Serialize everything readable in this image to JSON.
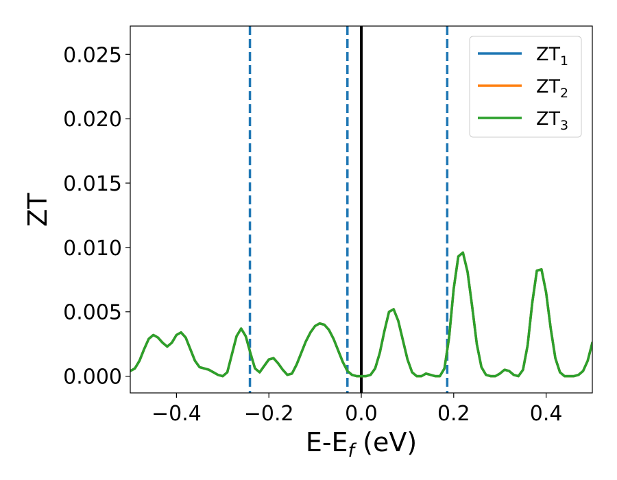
{
  "chart_data": {
    "type": "line",
    "xlabel_main": "E-E",
    "xlabel_sub": "f",
    "xlabel_unit": " (eV)",
    "ylabel": "ZT",
    "xlim": [
      -0.5,
      0.5
    ],
    "ylim": [
      -0.0013,
      0.0272
    ],
    "xticks": [
      -0.4,
      -0.2,
      0.0,
      0.2,
      0.4
    ],
    "xtick_labels": [
      "−0.4",
      "−0.2",
      "0.0",
      "0.2",
      "0.4"
    ],
    "yticks": [
      0.0,
      0.005,
      0.01,
      0.015,
      0.02,
      0.025
    ],
    "ytick_labels": [
      "0.000",
      "0.005",
      "0.010",
      "0.015",
      "0.020",
      "0.025"
    ],
    "grid": false,
    "legend_position": "top-right",
    "vlines": [
      {
        "x": -0.241,
        "style": "dashed",
        "color": "#1f77b4"
      },
      {
        "x": -0.03,
        "style": "dashed",
        "color": "#1f77b4"
      },
      {
        "x": 0.0,
        "style": "solid",
        "color": "#000000"
      },
      {
        "x": 0.186,
        "style": "dashed",
        "color": "#1f77b4"
      }
    ],
    "x": [
      -0.5,
      -0.49,
      -0.48,
      -0.47,
      -0.46,
      -0.45,
      -0.44,
      -0.43,
      -0.42,
      -0.41,
      -0.4,
      -0.39,
      -0.38,
      -0.37,
      -0.36,
      -0.35,
      -0.34,
      -0.33,
      -0.32,
      -0.31,
      -0.3,
      -0.29,
      -0.28,
      -0.27,
      -0.26,
      -0.25,
      -0.24,
      -0.23,
      -0.22,
      -0.21,
      -0.2,
      -0.19,
      -0.18,
      -0.17,
      -0.16,
      -0.15,
      -0.14,
      -0.13,
      -0.12,
      -0.11,
      -0.1,
      -0.09,
      -0.08,
      -0.07,
      -0.06,
      -0.05,
      -0.04,
      -0.03,
      -0.02,
      -0.01,
      0.0,
      0.01,
      0.02,
      0.03,
      0.04,
      0.05,
      0.06,
      0.07,
      0.08,
      0.09,
      0.1,
      0.11,
      0.12,
      0.13,
      0.14,
      0.15,
      0.16,
      0.17,
      0.18,
      0.19,
      0.2,
      0.21,
      0.22,
      0.23,
      0.24,
      0.25,
      0.26,
      0.27,
      0.28,
      0.29,
      0.3,
      0.31,
      0.32,
      0.33,
      0.34,
      0.35,
      0.36,
      0.37,
      0.38,
      0.39,
      0.4,
      0.41,
      0.42,
      0.43,
      0.44,
      0.45,
      0.46,
      0.47,
      0.48,
      0.49,
      0.5
    ],
    "series": [
      {
        "name": "ZT",
        "name_sub": "1",
        "color": "#1f77b4",
        "values": [
          0.0004,
          0.0006,
          0.0012,
          0.0021,
          0.0029,
          0.0032,
          0.003,
          0.0026,
          0.0023,
          0.0026,
          0.0032,
          0.0034,
          0.003,
          0.0021,
          0.0012,
          0.0007,
          0.0006,
          0.0005,
          0.0003,
          0.0001,
          0.0,
          0.0003,
          0.0017,
          0.0031,
          0.0037,
          0.0031,
          0.0018,
          0.0006,
          0.0003,
          0.0008,
          0.0013,
          0.0014,
          0.001,
          0.0005,
          0.0001,
          0.0002,
          0.0009,
          0.0018,
          0.0027,
          0.0034,
          0.0039,
          0.0041,
          0.004,
          0.0036,
          0.0029,
          0.002,
          0.0011,
          0.0004,
          0.0001,
          0.0,
          0.0,
          0.0,
          0.0001,
          0.0006,
          0.0018,
          0.0035,
          0.005,
          0.0052,
          0.0043,
          0.0028,
          0.0013,
          0.0003,
          0.0,
          0.0,
          0.0002,
          0.0001,
          0.0,
          0.0,
          0.0006,
          0.003,
          0.0068,
          0.0093,
          0.0096,
          0.0081,
          0.0054,
          0.0025,
          0.0007,
          0.0001,
          0.0,
          0.0,
          0.0002,
          0.0005,
          0.0004,
          0.0001,
          0.0,
          0.0005,
          0.0024,
          0.0057,
          0.0082,
          0.0083,
          0.0065,
          0.0037,
          0.0014,
          0.0003,
          0.0,
          0.0,
          0.0,
          0.0001,
          0.0004,
          0.0012,
          0.0026
        ]
      },
      {
        "name": "ZT",
        "name_sub": "2",
        "color": "#ff7f0e",
        "values": [
          0.0004,
          0.0006,
          0.0012,
          0.0021,
          0.0029,
          0.0032,
          0.003,
          0.0026,
          0.0023,
          0.0026,
          0.0032,
          0.0034,
          0.003,
          0.0021,
          0.0012,
          0.0007,
          0.0006,
          0.0005,
          0.0003,
          0.0001,
          0.0,
          0.0003,
          0.0017,
          0.0031,
          0.0037,
          0.0031,
          0.0018,
          0.0006,
          0.0003,
          0.0008,
          0.0013,
          0.0014,
          0.001,
          0.0005,
          0.0001,
          0.0002,
          0.0009,
          0.0018,
          0.0027,
          0.0034,
          0.0039,
          0.0041,
          0.004,
          0.0036,
          0.0029,
          0.002,
          0.0011,
          0.0004,
          0.0001,
          0.0,
          0.0,
          0.0,
          0.0001,
          0.0006,
          0.0018,
          0.0035,
          0.005,
          0.0052,
          0.0043,
          0.0028,
          0.0013,
          0.0003,
          0.0,
          0.0,
          0.0002,
          0.0001,
          0.0,
          0.0,
          0.0006,
          0.003,
          0.0068,
          0.0093,
          0.0096,
          0.0081,
          0.0054,
          0.0025,
          0.0007,
          0.0001,
          0.0,
          0.0,
          0.0002,
          0.0005,
          0.0004,
          0.0001,
          0.0,
          0.0005,
          0.0024,
          0.0057,
          0.0082,
          0.0083,
          0.0065,
          0.0037,
          0.0014,
          0.0003,
          0.0,
          0.0,
          0.0,
          0.0001,
          0.0004,
          0.0012,
          0.0026
        ]
      },
      {
        "name": "ZT",
        "name_sub": "3",
        "color": "#2ca02c",
        "values": [
          0.0004,
          0.0006,
          0.0012,
          0.0021,
          0.0029,
          0.0032,
          0.003,
          0.0026,
          0.0023,
          0.0026,
          0.0032,
          0.0034,
          0.003,
          0.0021,
          0.0012,
          0.0007,
          0.0006,
          0.0005,
          0.0003,
          0.0001,
          0.0,
          0.0003,
          0.0017,
          0.0031,
          0.0037,
          0.0031,
          0.0018,
          0.0006,
          0.0003,
          0.0008,
          0.0013,
          0.0014,
          0.001,
          0.0005,
          0.0001,
          0.0002,
          0.0009,
          0.0018,
          0.0027,
          0.0034,
          0.0039,
          0.0041,
          0.004,
          0.0036,
          0.0029,
          0.002,
          0.0011,
          0.0004,
          0.0001,
          0.0,
          0.0,
          0.0,
          0.0001,
          0.0006,
          0.0018,
          0.0035,
          0.005,
          0.0052,
          0.0043,
          0.0028,
          0.0013,
          0.0003,
          0.0,
          0.0,
          0.0002,
          0.0001,
          0.0,
          0.0,
          0.0006,
          0.003,
          0.0068,
          0.0093,
          0.0096,
          0.0081,
          0.0054,
          0.0025,
          0.0007,
          0.0001,
          0.0,
          0.0,
          0.0002,
          0.0005,
          0.0004,
          0.0001,
          0.0,
          0.0005,
          0.0024,
          0.0057,
          0.0082,
          0.0083,
          0.0065,
          0.0037,
          0.0014,
          0.0003,
          0.0,
          0.0,
          0.0,
          0.0001,
          0.0004,
          0.0012,
          0.0026
        ]
      }
    ]
  }
}
